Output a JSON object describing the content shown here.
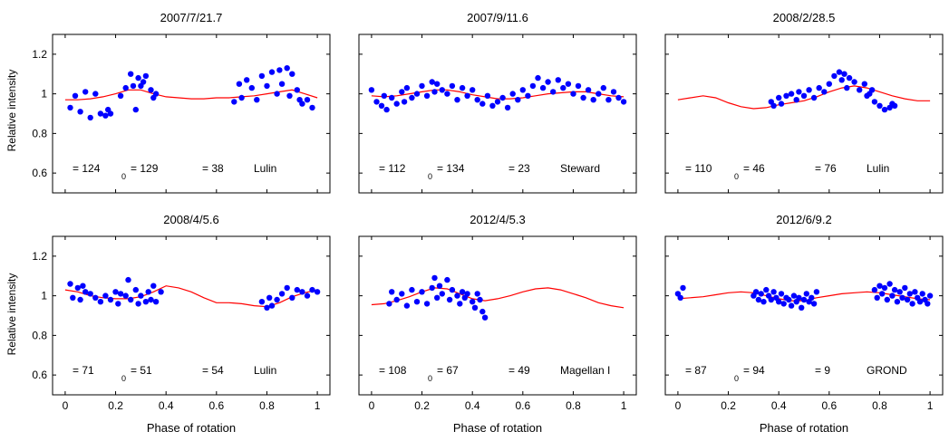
{
  "figure": {
    "ylabel": "Relative intensity",
    "xlabel": "Phase of rotation",
    "x_ticks": [
      "0",
      "0.2",
      "0.4",
      "0.6",
      "0.8",
      "1"
    ],
    "y_ticks": [
      "0.6",
      "0.8",
      "1",
      "1.2"
    ]
  },
  "colors": {
    "observed": "#0000ff",
    "model": "#ff0000",
    "axes": "#000000"
  },
  "chart_data": [
    {
      "type": "scatter",
      "title": "2007/7/21.7",
      "xlabel": "",
      "ylabel": "Relative intensity",
      "xlim": [
        -0.05,
        1.05
      ],
      "ylim": [
        0.5,
        1.3
      ],
      "annotations": [
        "= 124",
        "0",
        "= 129",
        "= 38",
        "Lulin"
      ],
      "series": [
        {
          "name": "observed",
          "x": [
            0.02,
            0.04,
            0.06,
            0.08,
            0.1,
            0.12,
            0.14,
            0.16,
            0.17,
            0.18,
            0.22,
            0.24,
            0.26,
            0.27,
            0.28,
            0.29,
            0.3,
            0.31,
            0.32,
            0.34,
            0.35,
            0.36,
            0.67,
            0.69,
            0.7,
            0.72,
            0.74,
            0.76,
            0.78,
            0.8,
            0.82,
            0.84,
            0.85,
            0.86,
            0.88,
            0.89,
            0.9,
            0.92,
            0.93,
            0.94,
            0.96,
            0.98
          ],
          "y": [
            0.93,
            0.99,
            0.91,
            1.01,
            0.88,
            1.0,
            0.9,
            0.89,
            0.92,
            0.9,
            0.99,
            1.03,
            1.1,
            1.04,
            0.92,
            1.08,
            1.04,
            1.06,
            1.09,
            1.02,
            0.98,
            1.0,
            0.96,
            1.05,
            0.98,
            1.07,
            1.03,
            0.97,
            1.09,
            1.04,
            1.11,
            1.0,
            1.12,
            1.05,
            1.13,
            0.99,
            1.1,
            1.02,
            0.97,
            0.95,
            0.97,
            0.93
          ]
        },
        {
          "name": "model",
          "x": [
            0,
            0.05,
            0.1,
            0.15,
            0.2,
            0.25,
            0.3,
            0.35,
            0.4,
            0.45,
            0.5,
            0.55,
            0.6,
            0.65,
            0.7,
            0.75,
            0.8,
            0.85,
            0.9,
            0.95,
            1
          ],
          "y": [
            0.97,
            0.97,
            0.975,
            0.985,
            1.0,
            1.02,
            1.02,
            1.0,
            0.985,
            0.98,
            0.975,
            0.975,
            0.98,
            0.98,
            0.985,
            0.99,
            1.0,
            1.01,
            1.02,
            1.0,
            0.98
          ]
        }
      ]
    },
    {
      "type": "scatter",
      "title": "2007/9/11.6",
      "xlabel": "",
      "ylabel": "",
      "xlim": [
        -0.05,
        1.05
      ],
      "ylim": [
        0.5,
        1.3
      ],
      "annotations": [
        "= 112",
        "0",
        "= 134",
        "= 23",
        "Steward"
      ],
      "series": [
        {
          "name": "observed",
          "x": [
            0,
            0.02,
            0.04,
            0.05,
            0.06,
            0.08,
            0.1,
            0.12,
            0.13,
            0.14,
            0.16,
            0.18,
            0.2,
            0.22,
            0.24,
            0.25,
            0.26,
            0.28,
            0.3,
            0.32,
            0.34,
            0.36,
            0.38,
            0.4,
            0.42,
            0.44,
            0.46,
            0.48,
            0.5,
            0.52,
            0.54,
            0.56,
            0.58,
            0.6,
            0.62,
            0.64,
            0.66,
            0.68,
            0.7,
            0.72,
            0.74,
            0.76,
            0.78,
            0.8,
            0.82,
            0.84,
            0.86,
            0.88,
            0.9,
            0.92,
            0.94,
            0.96,
            0.98,
            1.0
          ],
          "y": [
            1.02,
            0.96,
            0.94,
            0.99,
            0.92,
            0.98,
            0.95,
            1.01,
            0.96,
            1.03,
            0.98,
            1.0,
            1.04,
            0.99,
            1.06,
            1.01,
            1.05,
            1.02,
            1.0,
            1.04,
            0.97,
            1.03,
            0.99,
            1.02,
            0.97,
            0.95,
            0.99,
            0.94,
            0.96,
            0.98,
            0.93,
            1.0,
            0.97,
            1.02,
            0.99,
            1.04,
            1.08,
            1.03,
            1.06,
            1.01,
            1.07,
            1.03,
            1.05,
            1.0,
            1.04,
            0.98,
            1.02,
            0.97,
            1.0,
            1.03,
            0.97,
            1.01,
            0.98,
            0.96
          ]
        },
        {
          "name": "model",
          "x": [
            0,
            0.05,
            0.1,
            0.15,
            0.2,
            0.25,
            0.3,
            0.35,
            0.4,
            0.45,
            0.5,
            0.55,
            0.6,
            0.65,
            0.7,
            0.75,
            0.8,
            0.85,
            0.9,
            0.95,
            1
          ],
          "y": [
            0.99,
            0.985,
            0.99,
            1.0,
            1.01,
            1.02,
            1.02,
            1.01,
            0.995,
            0.985,
            0.975,
            0.975,
            0.98,
            0.99,
            1.0,
            1.005,
            1.01,
            1.01,
            1.0,
            0.99,
            0.985
          ]
        }
      ]
    },
    {
      "type": "scatter",
      "title": "2008/2/28.5",
      "xlabel": "",
      "ylabel": "",
      "xlim": [
        -0.05,
        1.05
      ],
      "ylim": [
        0.5,
        1.3
      ],
      "annotations": [
        "= 110",
        "0",
        "= 46",
        "= 76",
        "Lulin"
      ],
      "series": [
        {
          "name": "observed",
          "x": [
            0.37,
            0.38,
            0.4,
            0.41,
            0.43,
            0.45,
            0.47,
            0.48,
            0.5,
            0.52,
            0.54,
            0.56,
            0.58,
            0.6,
            0.62,
            0.64,
            0.65,
            0.66,
            0.67,
            0.68,
            0.7,
            0.72,
            0.74,
            0.75,
            0.76,
            0.77,
            0.78,
            0.8,
            0.82,
            0.84,
            0.85,
            0.86
          ],
          "y": [
            0.96,
            0.94,
            0.98,
            0.95,
            0.99,
            1.0,
            0.97,
            1.01,
            0.99,
            1.02,
            0.98,
            1.03,
            1.01,
            1.05,
            1.09,
            1.11,
            1.07,
            1.1,
            1.03,
            1.08,
            1.06,
            1.02,
            1.05,
            0.99,
            1.0,
            1.02,
            0.96,
            0.94,
            0.92,
            0.93,
            0.95,
            0.94
          ]
        },
        {
          "name": "model",
          "x": [
            0,
            0.05,
            0.1,
            0.15,
            0.2,
            0.25,
            0.3,
            0.35,
            0.4,
            0.45,
            0.5,
            0.55,
            0.6,
            0.65,
            0.7,
            0.75,
            0.8,
            0.85,
            0.9,
            0.95,
            1
          ],
          "y": [
            0.97,
            0.98,
            0.99,
            0.98,
            0.955,
            0.935,
            0.925,
            0.93,
            0.945,
            0.955,
            0.965,
            0.985,
            1.01,
            1.03,
            1.04,
            1.03,
            1.01,
            0.99,
            0.975,
            0.965,
            0.965
          ]
        }
      ]
    },
    {
      "type": "scatter",
      "title": "2008/4/5.6",
      "xlabel": "Phase of rotation",
      "ylabel": "Relative intensity",
      "xlim": [
        -0.05,
        1.05
      ],
      "ylim": [
        0.5,
        1.3
      ],
      "annotations": [
        "= 71",
        "0",
        "= 51",
        "= 54",
        "Lulin"
      ],
      "series": [
        {
          "name": "observed",
          "x": [
            0.02,
            0.03,
            0.05,
            0.06,
            0.07,
            0.08,
            0.1,
            0.12,
            0.14,
            0.16,
            0.18,
            0.2,
            0.21,
            0.22,
            0.24,
            0.25,
            0.26,
            0.28,
            0.29,
            0.3,
            0.32,
            0.33,
            0.34,
            0.35,
            0.36,
            0.38,
            0.78,
            0.8,
            0.81,
            0.82,
            0.84,
            0.86,
            0.88,
            0.9,
            0.92,
            0.94,
            0.96,
            0.98,
            1.0
          ],
          "y": [
            1.06,
            0.99,
            1.04,
            0.98,
            1.05,
            1.02,
            1.01,
            0.99,
            0.97,
            1.0,
            0.98,
            1.02,
            0.96,
            1.01,
            1.0,
            1.08,
            0.98,
            1.03,
            0.96,
            1.0,
            0.97,
            1.02,
            0.98,
            1.05,
            0.97,
            1.02,
            0.97,
            0.94,
            0.99,
            0.95,
            0.98,
            1.01,
            1.04,
            0.99,
            1.03,
            1.02,
            1.0,
            1.03,
            1.02
          ]
        },
        {
          "name": "model",
          "x": [
            0,
            0.05,
            0.1,
            0.15,
            0.2,
            0.25,
            0.3,
            0.35,
            0.4,
            0.45,
            0.5,
            0.55,
            0.6,
            0.65,
            0.7,
            0.75,
            0.8,
            0.85,
            0.9,
            0.95,
            1
          ],
          "y": [
            1.03,
            1.02,
            1.0,
            0.99,
            0.985,
            0.985,
            0.995,
            1.02,
            1.05,
            1.04,
            1.02,
            0.99,
            0.965,
            0.965,
            0.96,
            0.95,
            0.945,
            0.965,
            0.995,
            1.015,
            1.03
          ]
        }
      ]
    },
    {
      "type": "scatter",
      "title": "2012/4/5.3",
      "xlabel": "Phase of rotation",
      "ylabel": "",
      "xlim": [
        -0.05,
        1.05
      ],
      "ylim": [
        0.5,
        1.3
      ],
      "annotations": [
        "= 108",
        "0",
        "= 67",
        "= 49",
        "Magellan I"
      ],
      "series": [
        {
          "name": "observed",
          "x": [
            0.07,
            0.08,
            0.1,
            0.12,
            0.14,
            0.16,
            0.18,
            0.2,
            0.22,
            0.24,
            0.25,
            0.26,
            0.27,
            0.28,
            0.3,
            0.31,
            0.32,
            0.34,
            0.35,
            0.36,
            0.37,
            0.38,
            0.4,
            0.41,
            0.42,
            0.43,
            0.44,
            0.45
          ],
          "y": [
            0.96,
            1.02,
            0.98,
            1.01,
            0.95,
            1.03,
            0.97,
            1.02,
            0.96,
            1.04,
            1.09,
            0.99,
            1.05,
            1.01,
            1.08,
            0.98,
            1.03,
            1.0,
            0.96,
            1.02,
            0.99,
            1.01,
            0.97,
            0.94,
            1.01,
            0.98,
            0.92,
            0.89
          ]
        },
        {
          "name": "model",
          "x": [
            0,
            0.05,
            0.1,
            0.15,
            0.2,
            0.25,
            0.3,
            0.35,
            0.4,
            0.45,
            0.5,
            0.55,
            0.6,
            0.65,
            0.7,
            0.75,
            0.8,
            0.85,
            0.9,
            0.95,
            1
          ],
          "y": [
            0.955,
            0.96,
            0.975,
            0.995,
            1.02,
            1.04,
            1.035,
            1.01,
            0.985,
            0.975,
            0.985,
            1.0,
            1.02,
            1.035,
            1.04,
            1.03,
            1.01,
            0.99,
            0.965,
            0.95,
            0.94
          ]
        }
      ]
    },
    {
      "type": "scatter",
      "title": "2012/6/9.2",
      "xlabel": "Phase of rotation",
      "ylabel": "",
      "xlim": [
        -0.05,
        1.05
      ],
      "ylim": [
        0.5,
        1.3
      ],
      "annotations": [
        "= 87",
        "0",
        "= 94",
        "= 9",
        "GROND"
      ],
      "series": [
        {
          "name": "observed",
          "x": [
            0,
            0.01,
            0.02,
            0.3,
            0.31,
            0.32,
            0.33,
            0.34,
            0.35,
            0.36,
            0.37,
            0.38,
            0.39,
            0.4,
            0.41,
            0.42,
            0.43,
            0.44,
            0.45,
            0.46,
            0.47,
            0.48,
            0.49,
            0.5,
            0.51,
            0.52,
            0.53,
            0.54,
            0.55,
            0.78,
            0.79,
            0.8,
            0.81,
            0.82,
            0.83,
            0.84,
            0.85,
            0.86,
            0.87,
            0.88,
            0.89,
            0.9,
            0.91,
            0.92,
            0.93,
            0.94,
            0.95,
            0.96,
            0.97,
            0.98,
            0.99,
            1.0
          ],
          "y": [
            1.01,
            0.99,
            1.04,
            1.0,
            1.02,
            0.98,
            1.01,
            0.97,
            1.03,
            1.0,
            0.98,
            1.02,
            0.99,
            0.97,
            1.01,
            0.96,
            0.99,
            0.98,
            0.95,
            1.0,
            0.97,
            0.99,
            0.94,
            0.98,
            1.01,
            0.97,
            0.99,
            0.96,
            1.02,
            1.03,
            0.99,
            1.05,
            1.01,
            1.04,
            0.98,
            1.06,
            1.0,
            1.03,
            0.97,
            1.02,
            0.99,
            1.04,
            0.98,
            1.01,
            0.96,
            1.02,
            0.99,
            0.97,
            1.01,
            0.98,
            0.96,
            1.0
          ]
        },
        {
          "name": "model",
          "x": [
            0,
            0.05,
            0.1,
            0.15,
            0.2,
            0.25,
            0.3,
            0.35,
            0.4,
            0.45,
            0.5,
            0.55,
            0.6,
            0.65,
            0.7,
            0.75,
            0.8,
            0.85,
            0.9,
            0.95,
            1
          ],
          "y": [
            0.985,
            0.99,
            0.995,
            1.005,
            1.015,
            1.02,
            1.015,
            1.0,
            0.985,
            0.975,
            0.975,
            0.99,
            1.0,
            1.01,
            1.015,
            1.02,
            1.015,
            1.005,
            0.995,
            0.985,
            0.98
          ]
        }
      ]
    }
  ]
}
